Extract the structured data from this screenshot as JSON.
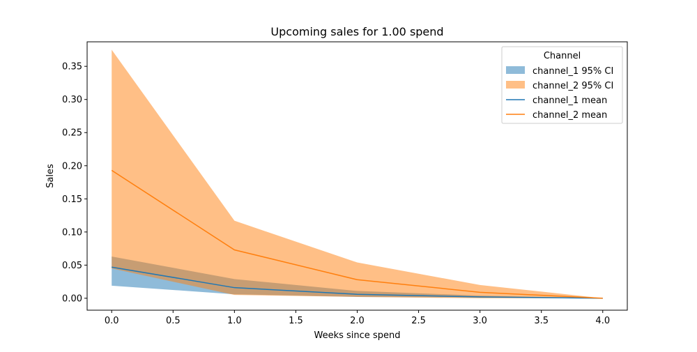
{
  "chart_data": {
    "type": "area",
    "title": "Upcoming sales for 1.00 spend",
    "xlabel": "Weeks since spend",
    "ylabel": "Sales",
    "xlim": [
      -0.2,
      4.2
    ],
    "ylim": [
      -0.018,
      0.387
    ],
    "x_ticks": [
      0.0,
      0.5,
      1.0,
      1.5,
      2.0,
      2.5,
      3.0,
      3.5,
      4.0
    ],
    "x_tick_labels": [
      "0.0",
      "0.5",
      "1.0",
      "1.5",
      "2.0",
      "2.5",
      "3.0",
      "3.5",
      "4.0"
    ],
    "y_ticks": [
      0.0,
      0.05,
      0.1,
      0.15,
      0.2,
      0.25,
      0.3,
      0.35
    ],
    "y_tick_labels": [
      "0.00",
      "0.05",
      "0.10",
      "0.15",
      "0.20",
      "0.25",
      "0.30",
      "0.35"
    ],
    "grid": false,
    "legend": {
      "title": "Channel",
      "placement": "top-right",
      "entries": [
        {
          "label": "channel_1 95% CI",
          "kind": "patch",
          "series": "channel_1"
        },
        {
          "label": "channel_2 95% CI",
          "kind": "patch",
          "series": "channel_2"
        },
        {
          "label": "channel_1 mean",
          "kind": "line",
          "series": "channel_1"
        },
        {
          "label": "channel_2 mean",
          "kind": "line",
          "series": "channel_2"
        }
      ]
    },
    "x": [
      0,
      1,
      2,
      3,
      4
    ],
    "series": [
      {
        "name": "channel_1",
        "color": "#1f77b4",
        "mean": [
          0.047,
          0.016,
          0.006,
          0.002,
          0.0
        ],
        "lower": [
          0.019,
          0.006,
          0.002,
          0.001,
          0.0
        ],
        "upper": [
          0.063,
          0.029,
          0.011,
          0.004,
          0.0
        ]
      },
      {
        "name": "channel_2",
        "color": "#ff7f0e",
        "mean": [
          0.193,
          0.073,
          0.028,
          0.009,
          0.0
        ],
        "lower": [
          0.045,
          0.005,
          0.002,
          0.0,
          0.0
        ],
        "upper": [
          0.375,
          0.117,
          0.054,
          0.02,
          0.0
        ]
      }
    ]
  }
}
